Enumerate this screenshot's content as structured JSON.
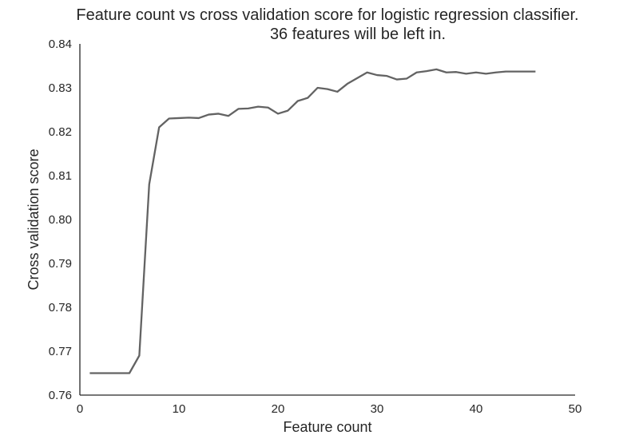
{
  "chart_data": {
    "type": "line",
    "title": [
      "Feature count vs cross validation score for logistic regression classifier.",
      "36 features will be left in."
    ],
    "xlabel": "Feature count",
    "ylabel": "Cross validation score",
    "xlim": [
      0,
      50
    ],
    "ylim": [
      0.76,
      0.84
    ],
    "xticks": [
      0,
      10,
      20,
      30,
      40,
      50
    ],
    "yticks": [
      0.76,
      0.77,
      0.78,
      0.79,
      0.8,
      0.81,
      0.82,
      0.83,
      0.84
    ],
    "xtick_labels": [
      "0",
      "10",
      "20",
      "30",
      "40",
      "50"
    ],
    "ytick_labels": [
      "0.76",
      "0.77",
      "0.78",
      "0.79",
      "0.80",
      "0.81",
      "0.82",
      "0.83",
      "0.84"
    ],
    "grid": false,
    "line_color": "#636363",
    "series": [
      {
        "x": [
          1,
          2,
          3,
          4,
          5,
          6,
          7,
          8,
          9,
          10,
          11,
          12,
          13,
          14,
          15,
          16,
          17,
          18,
          19,
          20,
          21,
          22,
          23,
          24,
          25,
          26,
          27,
          28,
          29,
          30,
          31,
          32,
          33,
          34,
          35,
          36,
          37,
          38,
          39,
          40,
          41,
          42,
          43,
          44,
          45,
          46
        ],
        "values": [
          0.765,
          0.765,
          0.765,
          0.765,
          0.765,
          0.769,
          0.808,
          0.821,
          0.823,
          0.8231,
          0.8232,
          0.8231,
          0.8239,
          0.8241,
          0.8236,
          0.8252,
          0.8253,
          0.8257,
          0.8255,
          0.8241,
          0.8248,
          0.827,
          0.8277,
          0.83,
          0.8297,
          0.8291,
          0.8309,
          0.8322,
          0.8335,
          0.8329,
          0.8327,
          0.8319,
          0.8321,
          0.8335,
          0.8338,
          0.8342,
          0.8335,
          0.8336,
          0.8332,
          0.8335,
          0.8332,
          0.8335,
          0.8337,
          0.8337,
          0.8337,
          0.8337
        ]
      }
    ]
  }
}
